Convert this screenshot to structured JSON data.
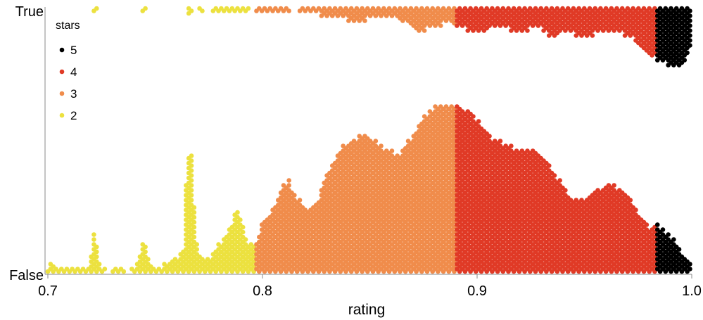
{
  "chart_data": {
    "type": "beeswarm",
    "xlabel": "rating",
    "ylabel": "",
    "xlim": [
      0.7,
      1.0
    ],
    "x_ticks": [
      "0.7",
      "0.8",
      "0.9",
      "1.0"
    ],
    "categories": [
      "True",
      "False"
    ],
    "legend": {
      "title": "stars",
      "placement": "top-left",
      "entries": [
        {
          "label": "5",
          "stars": 5,
          "color": "#000000"
        },
        {
          "label": "4",
          "stars": 4,
          "color": "#e03a26"
        },
        {
          "label": "3",
          "stars": 3,
          "color": "#f08c4b"
        },
        {
          "label": "2",
          "stars": 2,
          "color": "#ece13f"
        }
      ]
    },
    "star_ranges": [
      {
        "stars": 2,
        "from": 0.7,
        "to": 0.797
      },
      {
        "stars": 3,
        "from": 0.797,
        "to": 0.89
      },
      {
        "stars": 4,
        "from": 0.89,
        "to": 0.983
      },
      {
        "stars": 5,
        "from": 0.983,
        "to": 1.0
      }
    ],
    "series": [
      {
        "name": "True",
        "direction": "down",
        "profile": [
          [
            0.72,
            0
          ],
          [
            0.722,
            1
          ],
          [
            0.724,
            0
          ],
          [
            0.743,
            0
          ],
          [
            0.745,
            1
          ],
          [
            0.747,
            0
          ],
          [
            0.764,
            0
          ],
          [
            0.766,
            2
          ],
          [
            0.768,
            0
          ],
          [
            0.771,
            1
          ],
          [
            0.774,
            0
          ],
          [
            0.78,
            1
          ],
          [
            0.786,
            1
          ],
          [
            0.792,
            1
          ],
          [
            0.795,
            0
          ],
          [
            0.797,
            1
          ],
          [
            0.81,
            1
          ],
          [
            0.816,
            0
          ],
          [
            0.818,
            1
          ],
          [
            0.835,
            2
          ],
          [
            0.845,
            3
          ],
          [
            0.852,
            2
          ],
          [
            0.86,
            2
          ],
          [
            0.868,
            3
          ],
          [
            0.872,
            5
          ],
          [
            0.88,
            4
          ],
          [
            0.887,
            3
          ],
          [
            0.89,
            4
          ],
          [
            0.9,
            5
          ],
          [
            0.91,
            4
          ],
          [
            0.92,
            5
          ],
          [
            0.928,
            4
          ],
          [
            0.935,
            6
          ],
          [
            0.942,
            5
          ],
          [
            0.95,
            6
          ],
          [
            0.958,
            5
          ],
          [
            0.965,
            5
          ],
          [
            0.972,
            6
          ],
          [
            0.978,
            9
          ],
          [
            0.982,
            10
          ],
          [
            0.986,
            11
          ],
          [
            0.99,
            12
          ],
          [
            0.994,
            12
          ],
          [
            0.997,
            11
          ],
          [
            0.9995,
            7
          ]
        ]
      },
      {
        "name": "False",
        "direction": "up",
        "profile": [
          [
            0.7,
            1
          ],
          [
            0.702,
            3
          ],
          [
            0.704,
            1
          ],
          [
            0.719,
            1
          ],
          [
            0.722,
            9
          ],
          [
            0.724,
            2
          ],
          [
            0.728,
            0
          ],
          [
            0.731,
            1
          ],
          [
            0.734,
            1
          ],
          [
            0.737,
            0
          ],
          [
            0.742,
            2
          ],
          [
            0.745,
            7
          ],
          [
            0.747,
            2
          ],
          [
            0.75,
            1
          ],
          [
            0.752,
            1
          ],
          [
            0.756,
            2
          ],
          [
            0.76,
            3
          ],
          [
            0.763,
            4
          ],
          [
            0.765,
            24
          ],
          [
            0.767,
            24
          ],
          [
            0.769,
            6
          ],
          [
            0.772,
            3
          ],
          [
            0.776,
            3
          ],
          [
            0.78,
            6
          ],
          [
            0.785,
            9
          ],
          [
            0.788,
            13
          ],
          [
            0.79,
            11
          ],
          [
            0.793,
            6
          ],
          [
            0.797,
            6
          ],
          [
            0.8,
            10
          ],
          [
            0.806,
            14
          ],
          [
            0.809,
            17
          ],
          [
            0.812,
            19
          ],
          [
            0.815,
            16
          ],
          [
            0.82,
            13
          ],
          [
            0.825,
            14
          ],
          [
            0.83,
            20
          ],
          [
            0.836,
            25
          ],
          [
            0.842,
            27
          ],
          [
            0.848,
            28
          ],
          [
            0.852,
            27
          ],
          [
            0.858,
            25
          ],
          [
            0.864,
            24
          ],
          [
            0.87,
            28
          ],
          [
            0.876,
            32
          ],
          [
            0.882,
            34
          ],
          [
            0.89,
            34
          ],
          [
            0.896,
            33
          ],
          [
            0.902,
            30
          ],
          [
            0.908,
            27
          ],
          [
            0.914,
            26
          ],
          [
            0.92,
            25
          ],
          [
            0.926,
            25
          ],
          [
            0.932,
            23
          ],
          [
            0.938,
            19
          ],
          [
            0.944,
            15
          ],
          [
            0.95,
            15
          ],
          [
            0.956,
            17
          ],
          [
            0.962,
            18
          ],
          [
            0.968,
            17
          ],
          [
            0.974,
            13
          ],
          [
            0.98,
            9
          ],
          [
            0.983,
            10
          ],
          [
            0.988,
            8
          ],
          [
            0.993,
            6
          ],
          [
            0.997,
            3
          ],
          [
            0.9995,
            2
          ]
        ]
      }
    ]
  }
}
